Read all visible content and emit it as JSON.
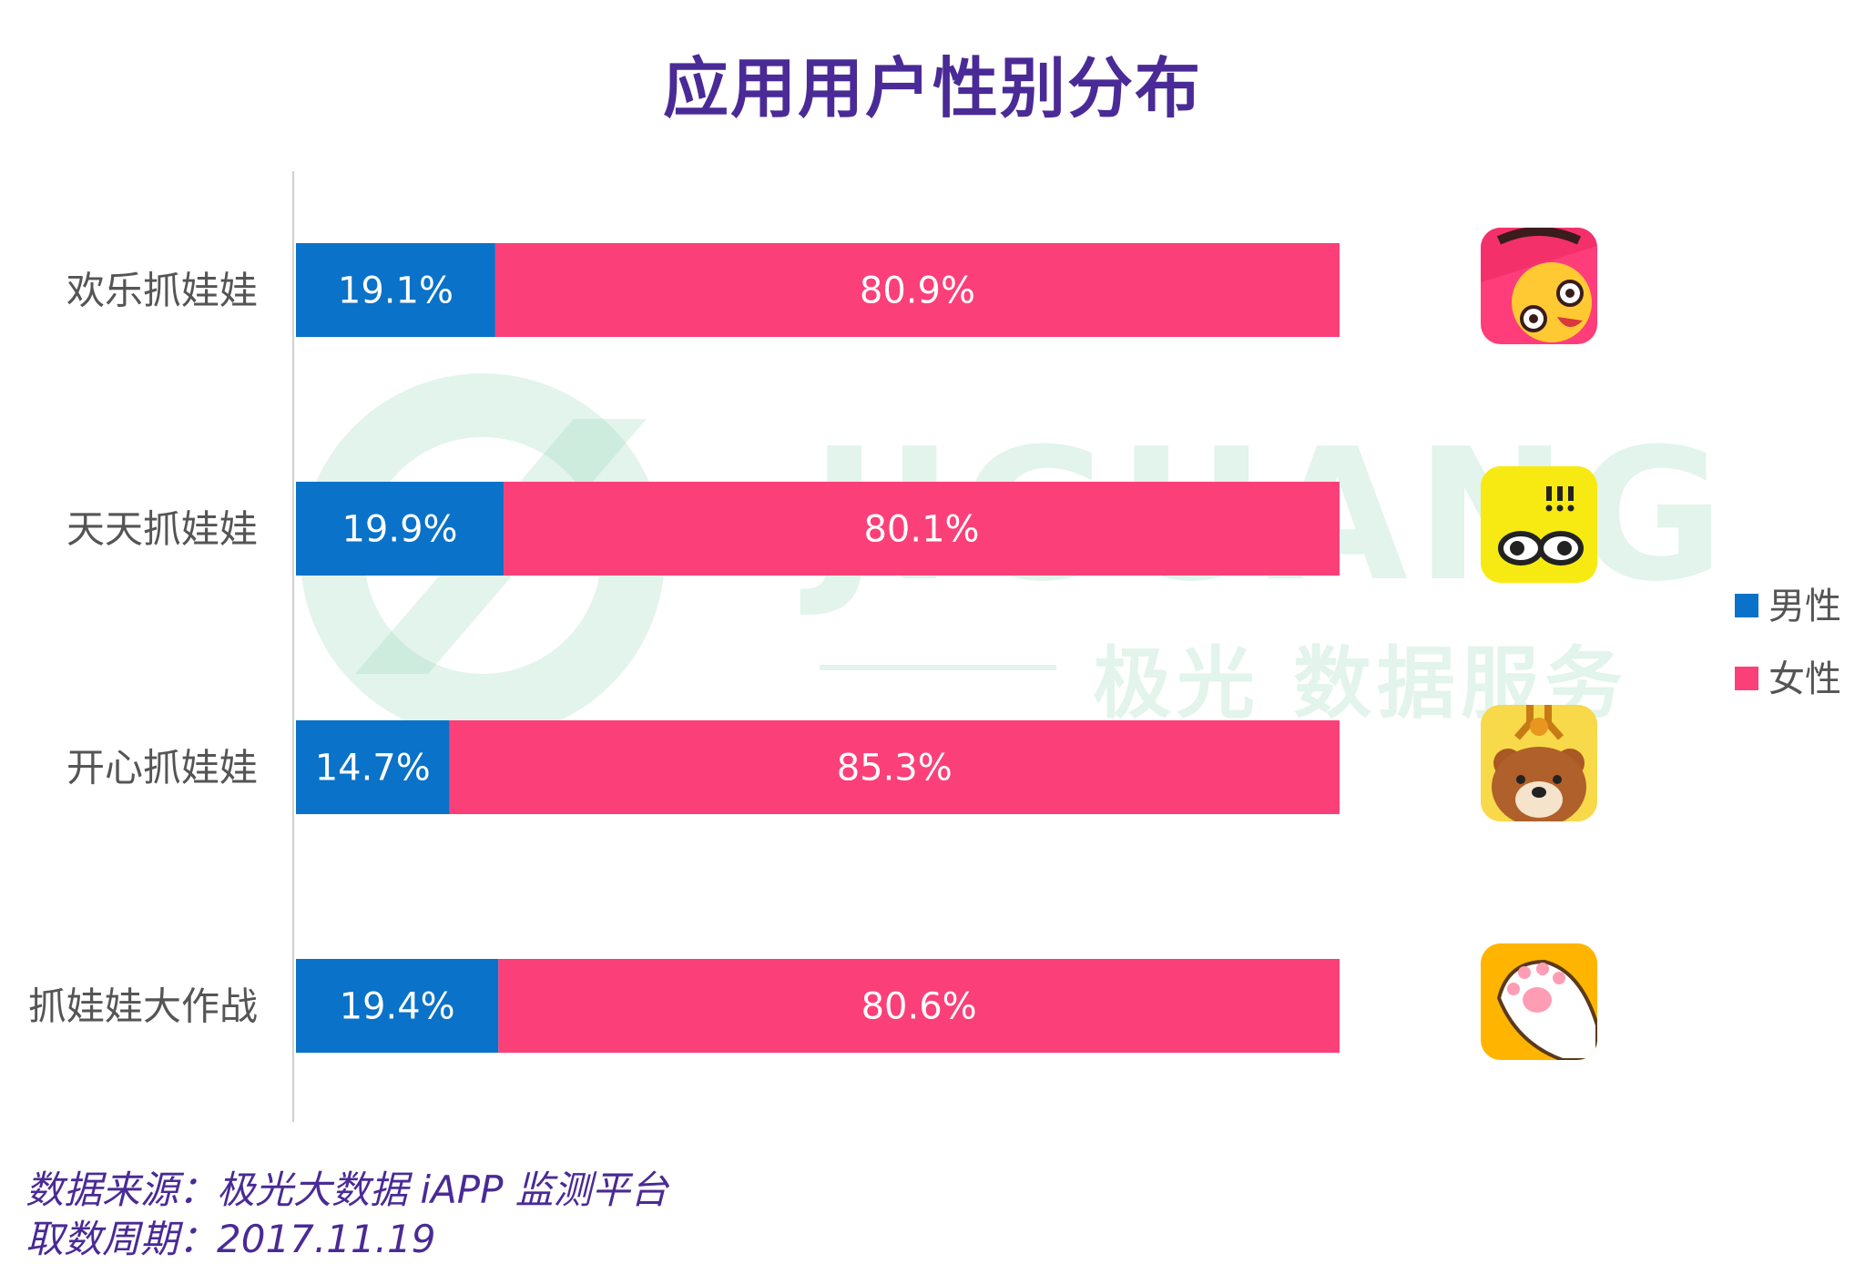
{
  "title": "应用用户性别分布",
  "chart_data": {
    "type": "bar",
    "orientation": "horizontal",
    "stacked": true,
    "categories": [
      "欢乐抓娃娃",
      "天天抓娃娃",
      "开心抓娃娃",
      "抓娃娃大作战"
    ],
    "series": [
      {
        "name": "男性",
        "color": "#0a72c8",
        "values": [
          19.1,
          19.9,
          14.7,
          19.4
        ]
      },
      {
        "name": "女性",
        "color": "#fb4079",
        "values": [
          80.9,
          80.1,
          85.3,
          80.6
        ]
      }
    ],
    "value_format": "percent_1dp",
    "xlim": [
      0,
      100
    ],
    "grid": false,
    "legend_position": "right"
  },
  "watermark": {
    "brand": "JIGUANG",
    "tagline": "极光 数据服务"
  },
  "icons": [
    "claw-tiger-app-icon",
    "yellow-face-app-icon",
    "bear-claw-app-icon",
    "cat-paw-app-icon"
  ],
  "footer": {
    "source": "数据来源：极光大数据 iAPP 监测平台",
    "period": "取数周期：2017.11.19"
  }
}
